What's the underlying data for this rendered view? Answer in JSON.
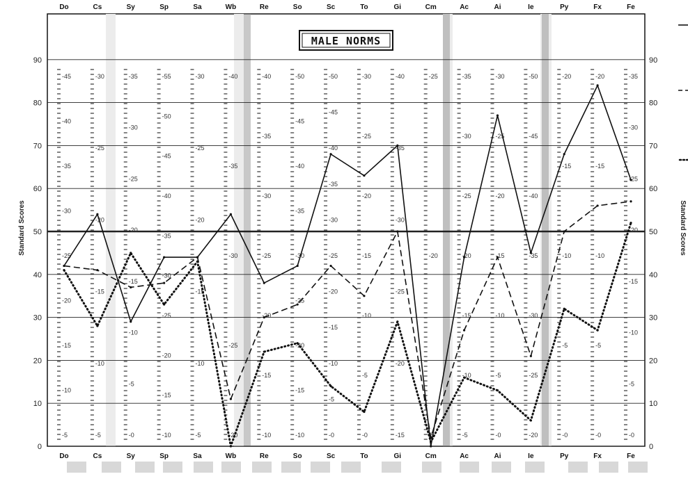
{
  "chart_data": {
    "type": "line",
    "title": "MALE NORMS",
    "ylabel_left": "Standard Scores",
    "ylabel_right": "Standard Scores",
    "ylim": [
      0,
      100
    ],
    "y_ticks": [
      0,
      10,
      20,
      30,
      40,
      50,
      60,
      70,
      80,
      90
    ],
    "categories_top": [
      "Do",
      "Cs",
      "Sy",
      "Sp",
      "Sa",
      "Wb",
      "Re",
      "So",
      "Sc",
      "To",
      "Gi",
      "Cm",
      "Ac",
      "Ai",
      "Ie",
      "Py",
      "Fx",
      "Fe"
    ],
    "categories": [
      "Do",
      "Cs",
      "Sy",
      "Sp",
      "Sa",
      "Wb",
      "Re",
      "So",
      "Sc",
      "To",
      "Gi",
      "Cm",
      "Ac",
      "Ai",
      "Ie",
      "Py",
      "Fx",
      "Fe"
    ],
    "series": [
      {
        "style": "solid",
        "values": [
          42,
          54,
          29,
          44,
          44,
          54,
          38,
          42,
          68,
          63,
          70,
          0,
          44,
          77,
          45,
          68,
          84,
          62
        ]
      },
      {
        "style": "dashed",
        "values": [
          42,
          41,
          37,
          38,
          44,
          11,
          30,
          33,
          42,
          35,
          50,
          2,
          27,
          44,
          21,
          50,
          56,
          57
        ]
      },
      {
        "style": "dotted",
        "values": [
          41,
          28,
          45,
          33,
          43,
          0,
          22,
          24,
          14,
          8,
          29,
          1,
          16,
          13,
          6,
          32,
          27,
          52
        ]
      }
    ],
    "column_scales": [
      {
        "labels": [
          "5",
          "10",
          "15",
          "20",
          "25",
          "30",
          "35",
          "40",
          "45"
        ]
      },
      {
        "labels": [
          "5",
          "10",
          "15",
          "20",
          "25",
          "30"
        ]
      },
      {
        "labels": [
          "0",
          "5",
          "10",
          "15",
          "20",
          "25",
          "30",
          "35"
        ]
      },
      {
        "labels": [
          "10",
          "15",
          "20",
          "25",
          "30",
          "35",
          "40",
          "45",
          "50",
          "55"
        ]
      },
      {
        "labels": [
          "5",
          "10",
          "15",
          "20",
          "25",
          "30"
        ]
      },
      {
        "labels": [
          "20",
          "25",
          "30",
          "35",
          "40"
        ]
      },
      {
        "labels": [
          "10",
          "15",
          "20",
          "25",
          "30",
          "35",
          "40"
        ]
      },
      {
        "labels": [
          "10",
          "15",
          "20",
          "25",
          "30",
          "35",
          "40",
          "45",
          "50"
        ]
      },
      {
        "labels": [
          "0",
          "5",
          "10",
          "15",
          "20",
          "25",
          "30",
          "35",
          "40",
          "45",
          "50"
        ]
      },
      {
        "labels": [
          "0",
          "5",
          "10",
          "15",
          "20",
          "25",
          "30"
        ]
      },
      {
        "labels": [
          "15",
          "20",
          "25",
          "30",
          "35",
          "40"
        ]
      },
      {
        "labels": [
          "5",
          "20",
          "25"
        ]
      },
      {
        "labels": [
          "5",
          "10",
          "15",
          "20",
          "25",
          "30",
          "35"
        ]
      },
      {
        "labels": [
          "0",
          "5",
          "10",
          "15",
          "20",
          "25",
          "30"
        ]
      },
      {
        "labels": [
          "20",
          "25",
          "30",
          "35",
          "40",
          "45",
          "50"
        ]
      },
      {
        "labels": [
          "0",
          "5",
          "10",
          "15",
          "20"
        ]
      },
      {
        "labels": [
          "0",
          "5",
          "10",
          "15",
          "20"
        ]
      },
      {
        "labels": [
          "0",
          "5",
          "10",
          "15",
          "20",
          "25",
          "30",
          "35"
        ]
      }
    ],
    "grid": true,
    "legend": "right"
  }
}
